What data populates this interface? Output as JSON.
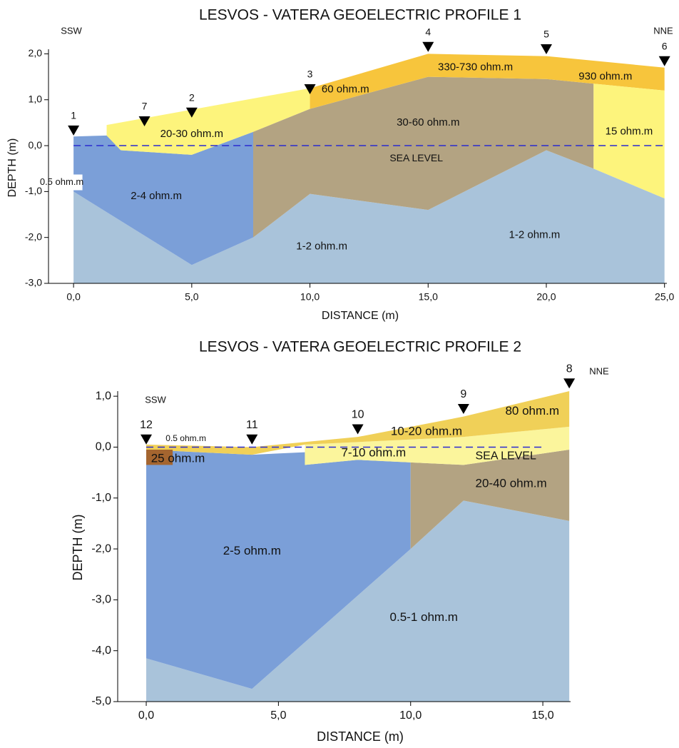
{
  "chart_data": [
    {
      "type": "profile",
      "title": "LESVOS - VATERA   GEOELECTRIC PROFILE 1",
      "xlabel": "DISTANCE   (m)",
      "ylabel": "DEPTH   (m)",
      "directions": [
        "SSW",
        "NNE"
      ],
      "xlim": [
        -1.06,
        25.1
      ],
      "ylim": [
        -3,
        2.1
      ],
      "xticks": [
        {
          "value": 0,
          "label": "0,0"
        },
        {
          "value": 5,
          "label": "5,0"
        },
        {
          "value": 10,
          "label": "10,0"
        },
        {
          "value": 15,
          "label": "15,0"
        },
        {
          "value": 20,
          "label": "20,0"
        },
        {
          "value": 25,
          "label": "25,0"
        }
      ],
      "yticks": [
        {
          "value": -3,
          "label": "-3,0"
        },
        {
          "value": -2,
          "label": "-2,0"
        },
        {
          "value": -1,
          "label": "-1,0"
        },
        {
          "value": 0,
          "label": "0,0"
        },
        {
          "value": 1,
          "label": "1,0"
        },
        {
          "value": 2,
          "label": "2,0"
        }
      ],
      "layers": [
        {
          "labels": [
            "1-2 ohm.m",
            "1-2 ohm.m"
          ],
          "color": "#a9c3da",
          "x": [
            0,
            5,
            7.6,
            10,
            15,
            20,
            22,
            25,
            25,
            0
          ],
          "y": [
            -1.0,
            -2.6,
            -2.0,
            -1.05,
            -1.4,
            -0.1,
            -0.5,
            -1.15,
            -3,
            -3
          ]
        },
        {
          "labels": [
            "2-4 ohm.m"
          ],
          "color": "#7b9fd8",
          "x": [
            0,
            1.4,
            2,
            5,
            7.6,
            7.6,
            5,
            0
          ],
          "y": [
            0.2,
            0.22,
            -0.1,
            -0.2,
            0.3,
            -2.0,
            -2.6,
            -1.0
          ]
        },
        {
          "labels": [
            "20-30 ohm.m"
          ],
          "color": "#fdf47c",
          "x": [
            1.4,
            10,
            10,
            7.6,
            5,
            2,
            1.4
          ],
          "y": [
            0.45,
            1.25,
            0.8,
            0.3,
            -0.2,
            -0.1,
            0.22
          ]
        },
        {
          "labels": [
            "30-60 ohm.m"
          ],
          "color": "#b3a382",
          "x": [
            7.6,
            10,
            15,
            20,
            22,
            22,
            20,
            15,
            10,
            7.6
          ],
          "y": [
            0.3,
            0.8,
            1.5,
            1.45,
            1.35,
            -0.5,
            -0.1,
            -1.4,
            -1.05,
            -2.0
          ]
        },
        {
          "labels": [
            "60 ohm.m",
            "330-730 ohm.m",
            "930 ohm.m"
          ],
          "color": "#f7c53c",
          "x": [
            10,
            10,
            15,
            20,
            25,
            25,
            22,
            20,
            15
          ],
          "y": [
            0.8,
            1.25,
            2.0,
            1.95,
            1.7,
            1.2,
            1.35,
            1.45,
            1.5
          ]
        },
        {
          "labels": [
            "15 ohm.m"
          ],
          "color": "#fdf47c",
          "x": [
            22,
            25,
            25,
            22
          ],
          "y": [
            1.35,
            1.2,
            -1.15,
            -0.5
          ]
        }
      ],
      "annotations": [
        "0.5 ohm.m"
      ],
      "sea_level": {
        "label": "SEA LEVEL",
        "y": 0,
        "color": "#2a2ad0"
      },
      "electrodes": {
        "labels": [
          "1",
          "7",
          "2",
          "3",
          "4",
          "5",
          "6"
        ],
        "x": [
          0,
          3,
          5,
          10,
          15,
          20,
          25
        ],
        "y": [
          0.33,
          0.53,
          0.72,
          1.23,
          2.15,
          2.1,
          1.84
        ]
      }
    },
    {
      "type": "profile",
      "title": "LESVOS - VATERA   GEOELECTRIC PROFILE 2",
      "xlabel": "DISTANCE   (m)",
      "ylabel": "DEPTH   (m)",
      "directions": [
        "SSW",
        "NNE"
      ],
      "xlim": [
        -1.08,
        16.05
      ],
      "ylim": [
        -5,
        1.1
      ],
      "xticks": [
        {
          "value": 0,
          "label": "0,0"
        },
        {
          "value": 5,
          "label": "5,0"
        },
        {
          "value": 10,
          "label": "10,0"
        },
        {
          "value": 15,
          "label": "15,0"
        }
      ],
      "yticks": [
        {
          "value": -5,
          "label": "-5,0"
        },
        {
          "value": -4,
          "label": "-4,0"
        },
        {
          "value": -3,
          "label": "-3,0"
        },
        {
          "value": -2,
          "label": "-2,0"
        },
        {
          "value": -1,
          "label": "-1,0"
        },
        {
          "value": 0,
          "label": "0,0"
        },
        {
          "value": 1,
          "label": "1,0"
        }
      ],
      "layers": [
        {
          "labels": [
            "0.5-1 ohm.m"
          ],
          "color": "#a9c3da",
          "x": [
            0,
            4,
            10,
            12,
            16,
            16,
            0
          ],
          "y": [
            -4.15,
            -4.75,
            -2.0,
            -1.05,
            -1.45,
            -5,
            -5
          ]
        },
        {
          "labels": [
            "2-5 ohm.m"
          ],
          "color": "#7b9fd8",
          "x": [
            0,
            4,
            6,
            6,
            8,
            10,
            10,
            4,
            0
          ],
          "y": [
            -0.05,
            -0.15,
            -0.1,
            -0.35,
            -0.25,
            -0.3,
            -2.0,
            -4.75,
            -4.15
          ]
        },
        {
          "labels": [
            "20-40 ohm.m"
          ],
          "color": "#b3a382",
          "x": [
            10,
            12,
            16,
            16,
            12,
            10
          ],
          "y": [
            -0.3,
            -0.35,
            -0.05,
            -1.45,
            -1.05,
            -2.0
          ]
        },
        {
          "labels": [
            "7-10 ohm.m"
          ],
          "color": "#fbf59c",
          "x": [
            6,
            12,
            16,
            16,
            12,
            10,
            8,
            6
          ],
          "y": [
            0.05,
            0.2,
            0.4,
            -0.05,
            -0.35,
            -0.3,
            -0.25,
            -0.35
          ]
        },
        {
          "labels": [
            "10-20 ohm.m",
            "80 ohm.m"
          ],
          "color": "#f0d058",
          "x": [
            0,
            4,
            8,
            12,
            16,
            16,
            12,
            6,
            4,
            0
          ],
          "y": [
            0.05,
            0.0,
            0.2,
            0.6,
            1.1,
            0.4,
            0.2,
            0.05,
            -0.15,
            -0.05
          ]
        },
        {
          "labels": [
            "25 ohm.m"
          ],
          "color": "#a5652f",
          "x": [
            0,
            1,
            1,
            0
          ],
          "y": [
            -0.05,
            -0.05,
            -0.35,
            -0.35
          ]
        }
      ],
      "annotations": [
        "0.5 ohm.m"
      ],
      "sea_level": {
        "label": "SEA LEVEL",
        "y": 0,
        "color": "#2a2ad0"
      },
      "electrodes": {
        "labels": [
          "12",
          "11",
          "10",
          "9",
          "8"
        ],
        "x": [
          0,
          4,
          8,
          12,
          16
        ],
        "y": [
          0.15,
          0.15,
          0.35,
          0.75,
          1.25
        ]
      }
    }
  ]
}
